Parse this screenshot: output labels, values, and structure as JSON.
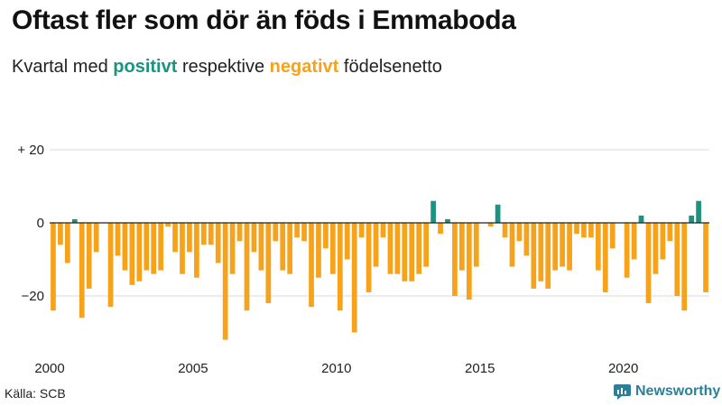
{
  "header": {
    "title": "Oftast fler som dör än föds i Emmaboda",
    "subtitle_pre": "Kvartal med ",
    "subtitle_pos": "positivt",
    "subtitle_mid": " respektive ",
    "subtitle_neg": "negativt",
    "subtitle_post": " födelsenetto"
  },
  "footer": {
    "source": "Källa: SCB",
    "brand": "Newsworthy"
  },
  "colors": {
    "positive": "#1a9480",
    "negative": "#f7a21b",
    "grid": "#d9d9d9",
    "axis": "#222222",
    "brand": "#2b7f9a"
  },
  "chart_data": {
    "type": "bar",
    "title": "Oftast fler som dör än föds i Emmaboda",
    "xlabel": "",
    "ylabel": "",
    "ylim": [
      -35,
      25
    ],
    "y_ticks": [
      20,
      0,
      -20
    ],
    "y_tick_labels": [
      "+ 20",
      "0",
      "−20"
    ],
    "x_ticks": [
      2000,
      2005,
      2010,
      2015,
      2020
    ],
    "x_tick_labels": [
      "2000",
      "2005",
      "2010",
      "2015",
      "2020"
    ],
    "start_year": 2000,
    "quarters_per_year": 4,
    "grid": true,
    "values": [
      -24,
      -6,
      -11,
      1,
      -26,
      -18,
      -8,
      0,
      -23,
      -9,
      -13,
      -17,
      -16,
      -13,
      -14,
      -13,
      -1,
      -8,
      -14,
      -8,
      -15,
      -6,
      -6,
      -11,
      -32,
      -14,
      -5,
      -24,
      -8,
      -13,
      -22,
      -5,
      -13,
      -14,
      -4,
      -5,
      -23,
      -15,
      -7,
      -14,
      -24,
      -10,
      -30,
      -4,
      -19,
      -12,
      -4,
      -14,
      -14,
      -16,
      -16,
      -14,
      -12,
      6,
      -3,
      1,
      -20,
      -13,
      -21,
      -12,
      0,
      -1,
      5,
      -4,
      -12,
      -5,
      -9,
      -18,
      -16,
      -18,
      -13,
      -12,
      -13,
      -3,
      -4,
      -4,
      -13,
      -19,
      -7,
      0,
      -15,
      -10,
      2,
      -22,
      -14,
      -10,
      -5,
      -20,
      -24,
      2,
      6,
      -19
    ]
  }
}
